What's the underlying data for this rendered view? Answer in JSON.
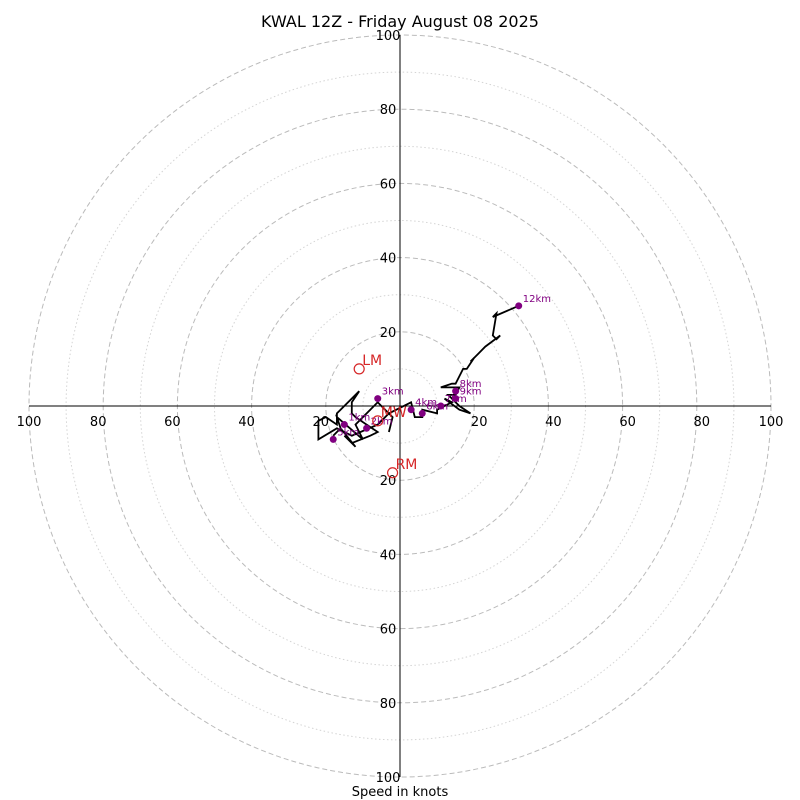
{
  "chart_data": {
    "type": "hodograph",
    "title": "KWAL 12Z - Friday August 08 2025",
    "xlabel": "Speed in knots",
    "ring_labels": [
      "20",
      "40",
      "60",
      "80",
      "100"
    ],
    "range": 100,
    "colors": {
      "trace": "#000000",
      "height_marker": "#800080",
      "motion": "#d62728",
      "ring": "#bbbbbb",
      "axis": "#000000"
    },
    "trace": [
      [
        -3,
        -7
      ],
      [
        -2,
        -3
      ],
      [
        -5,
        0
      ],
      [
        -6,
        1
      ],
      [
        -12,
        -5
      ],
      [
        -10,
        -9
      ],
      [
        -17,
        -3
      ],
      [
        -16,
        -6
      ],
      [
        -18,
        -8
      ],
      [
        -16,
        -6
      ],
      [
        -12,
        -11
      ],
      [
        -14,
        -9
      ],
      [
        -15,
        -8
      ],
      [
        -13,
        -10
      ],
      [
        -8,
        -8
      ],
      [
        -6,
        -7
      ],
      [
        -9,
        -5
      ],
      [
        -12,
        -3
      ],
      [
        -13,
        -2
      ],
      [
        -13,
        1
      ],
      [
        -11,
        4
      ],
      [
        -17,
        -2
      ],
      [
        -17,
        -5
      ],
      [
        -20,
        -3
      ],
      [
        -22,
        -4
      ],
      [
        -22,
        -9
      ],
      [
        -17,
        -6
      ],
      [
        -13,
        -8
      ],
      [
        -6,
        -5
      ],
      [
        -3,
        -2
      ],
      [
        3,
        1
      ],
      [
        4,
        -3
      ],
      [
        6,
        -3
      ],
      [
        6,
        -1
      ],
      [
        10,
        -2
      ],
      [
        10,
        -1
      ],
      [
        14,
        1
      ],
      [
        12,
        2
      ],
      [
        16,
        -1
      ],
      [
        19,
        -2
      ],
      [
        16,
        0
      ],
      [
        13,
        3
      ],
      [
        15,
        3
      ],
      [
        16,
        5
      ],
      [
        11,
        5
      ],
      [
        14,
        6
      ],
      [
        15,
        6
      ],
      [
        17,
        10
      ],
      [
        18,
        10
      ],
      [
        20,
        13
      ],
      [
        19,
        12
      ],
      [
        21,
        14
      ],
      [
        23,
        16
      ],
      [
        27,
        19
      ],
      [
        26,
        18
      ],
      [
        25,
        19
      ],
      [
        26,
        25
      ],
      [
        25,
        24
      ],
      [
        32,
        27
      ]
    ],
    "heights": [
      {
        "label": "1km",
        "u": -15,
        "v": -5
      },
      {
        "label": "2km",
        "u": -9,
        "v": -6
      },
      {
        "label": "3km",
        "u": -6,
        "v": 2
      },
      {
        "label": "4km",
        "u": 3,
        "v": -1
      },
      {
        "label": "5km",
        "u": -18,
        "v": -9
      },
      {
        "label": "6km",
        "u": 6,
        "v": -2
      },
      {
        "label": "7km",
        "u": 11,
        "v": 0
      },
      {
        "label": "8km",
        "u": 15,
        "v": 4
      },
      {
        "label": "9km",
        "u": 15,
        "v": 2
      },
      {
        "label": "12km",
        "u": 32,
        "v": 27
      }
    ],
    "storm_motion": [
      {
        "label": "LM",
        "u": -11,
        "v": 10
      },
      {
        "label": "MW",
        "u": -6,
        "v": -4
      },
      {
        "label": "RM",
        "u": -2,
        "v": -18
      }
    ]
  }
}
